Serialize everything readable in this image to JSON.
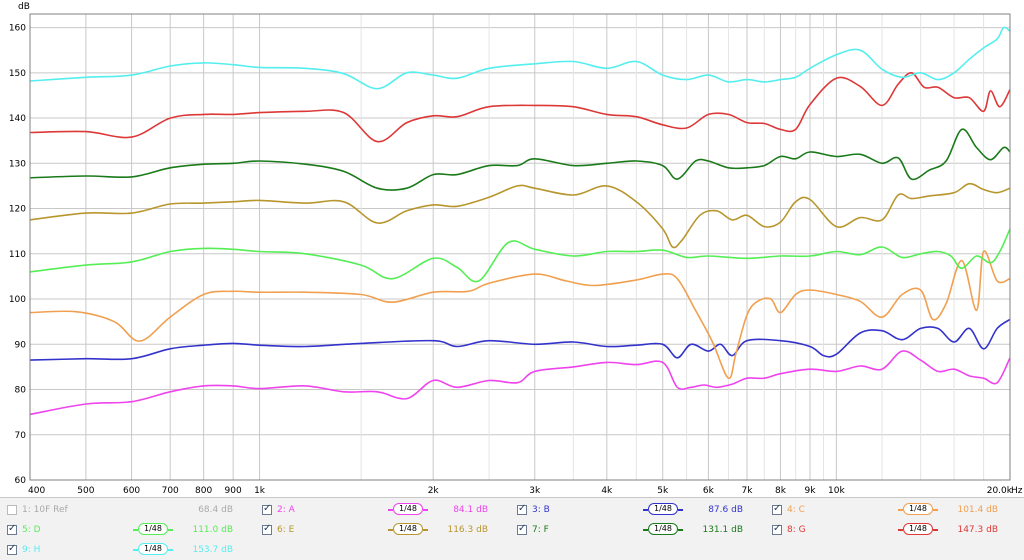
{
  "chart_data": {
    "type": "line",
    "xlabel": "Hz",
    "ylabel": "dB",
    "xscale": "log",
    "xlim": [
      400,
      20000
    ],
    "ylim": [
      60,
      163
    ],
    "grid": true,
    "y_ticks": [
      60,
      70,
      80,
      90,
      100,
      110,
      120,
      130,
      140,
      150,
      160
    ],
    "x_ticks": [
      {
        "value": 400,
        "label": "400"
      },
      {
        "value": 500,
        "label": "500"
      },
      {
        "value": 600,
        "label": "600"
      },
      {
        "value": 700,
        "label": "700"
      },
      {
        "value": 800,
        "label": "800"
      },
      {
        "value": 900,
        "label": "900"
      },
      {
        "value": 1000,
        "label": "1k"
      },
      {
        "value": 2000,
        "label": "2k"
      },
      {
        "value": 3000,
        "label": "3k"
      },
      {
        "value": 4000,
        "label": "4k"
      },
      {
        "value": 5000,
        "label": "5k"
      },
      {
        "value": 6000,
        "label": "6k"
      },
      {
        "value": 7000,
        "label": "7k"
      },
      {
        "value": 8000,
        "label": "8k"
      },
      {
        "value": 9000,
        "label": "9k"
      },
      {
        "value": 10000,
        "label": "10k"
      },
      {
        "value": 20000,
        "label": "20.0k"
      }
    ],
    "x_minor": [
      1500,
      2500,
      3500,
      4500,
      5500,
      6500,
      7500,
      8500,
      9500,
      12000,
      14000,
      16000,
      18000
    ],
    "series": [
      {
        "name": "A",
        "color": "#ee44ee",
        "x": [
          400,
          500,
          600,
          700,
          800,
          900,
          1000,
          1200,
          1400,
          1600,
          1800,
          2000,
          2200,
          2500,
          2800,
          3000,
          3500,
          4000,
          4500,
          5000,
          5300,
          5600,
          5900,
          6200,
          6600,
          7000,
          7500,
          8000,
          9000,
          10000,
          11000,
          12000,
          13000,
          14000,
          15000,
          16000,
          17000,
          18000,
          19000,
          20000
        ],
        "y": [
          74.5,
          76.8,
          77.3,
          79.5,
          80.8,
          80.8,
          80.2,
          80.8,
          79.5,
          79.5,
          78,
          82,
          80.5,
          82,
          81.5,
          84,
          85,
          86,
          85.5,
          86,
          80.5,
          80.5,
          81,
          80.5,
          81.2,
          82.5,
          82.5,
          83.5,
          84.5,
          84,
          85.2,
          84.5,
          88.5,
          86.5,
          84,
          84.5,
          83,
          82.5,
          81.5,
          87
        ]
      },
      {
        "name": "B",
        "color": "#3333cc",
        "x": [
          400,
          500,
          600,
          700,
          800,
          900,
          1000,
          1200,
          1500,
          2000,
          2200,
          2500,
          3000,
          3500,
          4000,
          4500,
          5000,
          5300,
          5600,
          6000,
          6300,
          6600,
          7000,
          8000,
          9000,
          9500,
          10000,
          11000,
          12000,
          13000,
          14000,
          15000,
          16000,
          17000,
          18000,
          19000,
          20000
        ],
        "y": [
          86.5,
          86.8,
          86.8,
          89,
          89.8,
          90.2,
          89.8,
          89.5,
          90.2,
          90.8,
          89.5,
          90.8,
          90,
          90.5,
          89.5,
          89.8,
          90,
          87,
          90,
          88.5,
          90,
          87.5,
          90.8,
          90.8,
          89.5,
          87.5,
          87.8,
          92.5,
          93,
          91,
          93.5,
          93.5,
          90.5,
          93.5,
          89,
          93.5,
          95.5
        ]
      },
      {
        "name": "C",
        "color": "#f0a050",
        "x": [
          400,
          480,
          560,
          620,
          700,
          800,
          900,
          1000,
          1200,
          1500,
          1700,
          2000,
          2300,
          2500,
          3000,
          3400,
          3800,
          4500,
          5000,
          5300,
          5700,
          6100,
          6500,
          6700,
          7000,
          7300,
          7700,
          8000,
          8500,
          9000,
          10000,
          11000,
          12000,
          13000,
          14000,
          14700,
          15500,
          16500,
          17500,
          18000,
          19000,
          20000
        ],
        "y": [
          97,
          97.2,
          95,
          90.7,
          96,
          101,
          101.7,
          101.5,
          101.5,
          101,
          99.3,
          101.5,
          101.7,
          103.5,
          105.5,
          104,
          103,
          104.2,
          105.5,
          104.5,
          97.5,
          90.5,
          82.5,
          88,
          96.5,
          99.5,
          100,
          97,
          101,
          102,
          101,
          99.5,
          96,
          101,
          102,
          95.5,
          99,
          108.5,
          97.5,
          110.5,
          104,
          104.5
        ]
      },
      {
        "name": "D",
        "color": "#55ee55",
        "x": [
          400,
          500,
          600,
          700,
          800,
          900,
          1000,
          1200,
          1500,
          1700,
          2000,
          2200,
          2400,
          2700,
          3000,
          3500,
          4000,
          4500,
          5000,
          5500,
          6000,
          7000,
          8000,
          9000,
          10000,
          11000,
          12000,
          13000,
          14000,
          15000,
          15800,
          16500,
          17500,
          18500,
          19200,
          20000
        ],
        "y": [
          106,
          107.5,
          108.2,
          110.5,
          111.2,
          111,
          110.5,
          110,
          107.5,
          104.5,
          109,
          107,
          104,
          112.5,
          111,
          109.5,
          110.5,
          110.5,
          110.8,
          109.2,
          109.5,
          109,
          109.5,
          109.5,
          110.5,
          109.8,
          111.5,
          109.2,
          110,
          110.5,
          109.5,
          106.8,
          109.5,
          108,
          110.5,
          115.5
        ]
      },
      {
        "name": "E",
        "color": "#b8962e",
        "x": [
          400,
          500,
          600,
          700,
          800,
          900,
          1000,
          1200,
          1400,
          1600,
          1800,
          2000,
          2200,
          2500,
          2800,
          3000,
          3500,
          4000,
          4500,
          5000,
          5200,
          5400,
          5800,
          6200,
          6600,
          7000,
          7500,
          8000,
          8500,
          9000,
          10000,
          11000,
          12000,
          12800,
          13500,
          14500,
          16000,
          17000,
          18000,
          19000,
          20000
        ],
        "y": [
          117.5,
          119,
          119,
          121,
          121.2,
          121.5,
          121.8,
          121.2,
          121.5,
          116.8,
          119.5,
          120.8,
          120.5,
          122.5,
          125,
          124.5,
          123,
          125,
          121.5,
          115.5,
          111.5,
          113,
          118.5,
          119.5,
          117.5,
          118.5,
          116,
          117,
          121.5,
          122,
          116,
          118,
          117.5,
          123,
          122.2,
          122.8,
          123.5,
          125.5,
          124.2,
          123.5,
          124.5
        ]
      },
      {
        "name": "F",
        "color": "#1a7a1a",
        "x": [
          400,
          500,
          600,
          700,
          800,
          900,
          1000,
          1200,
          1400,
          1600,
          1800,
          2000,
          2200,
          2500,
          2800,
          3000,
          3500,
          4000,
          4500,
          5000,
          5300,
          5700,
          6000,
          6500,
          7000,
          7500,
          8000,
          8500,
          9000,
          10000,
          11000,
          12000,
          12800,
          13500,
          14500,
          15500,
          16500,
          17500,
          18500,
          19500,
          20000
        ],
        "y": [
          126.8,
          127.2,
          127,
          129,
          129.8,
          130,
          130.5,
          129.8,
          128.2,
          124.5,
          124.5,
          127.5,
          127.5,
          129.5,
          129.5,
          131,
          129.5,
          130,
          130.5,
          129.5,
          126.5,
          130.5,
          130.5,
          129,
          129,
          129.5,
          131.5,
          131,
          132.5,
          131.5,
          132,
          130,
          131.2,
          126.5,
          128.5,
          130.5,
          137.5,
          133.5,
          130.8,
          133.5,
          132.5
        ]
      },
      {
        "name": "G",
        "color": "#dd3838",
        "x": [
          400,
          500,
          600,
          700,
          800,
          900,
          1000,
          1200,
          1400,
          1600,
          1800,
          2000,
          2200,
          2500,
          3000,
          3500,
          4000,
          4500,
          5000,
          5500,
          6000,
          6500,
          7000,
          7500,
          8000,
          8500,
          9000,
          10000,
          11000,
          12000,
          12800,
          13500,
          14200,
          15000,
          16000,
          17000,
          18000,
          18500,
          19200,
          20000
        ],
        "y": [
          136.8,
          137,
          135.8,
          140,
          140.8,
          140.8,
          141.2,
          141.5,
          141.2,
          134.8,
          139,
          140.5,
          140.3,
          142.5,
          142.8,
          142.5,
          140.8,
          140.3,
          138.5,
          137.8,
          140.8,
          140.8,
          139,
          138.8,
          137.5,
          137.5,
          143,
          148.8,
          147,
          142.8,
          147.5,
          150,
          146.8,
          146.8,
          144.5,
          144.5,
          141.5,
          146,
          142.5,
          146.3
        ]
      },
      {
        "name": "H",
        "color": "#55eeee",
        "x": [
          400,
          500,
          600,
          700,
          800,
          900,
          1000,
          1200,
          1400,
          1600,
          1800,
          2000,
          2200,
          2500,
          3000,
          3500,
          4000,
          4500,
          5000,
          5500,
          6000,
          6500,
          7000,
          7500,
          8000,
          8500,
          9000,
          10000,
          11000,
          12000,
          13000,
          14000,
          15000,
          16000,
          17000,
          18000,
          19000,
          19500,
          20000
        ],
        "y": [
          148.2,
          149,
          149.5,
          151.5,
          152.2,
          151.8,
          151.2,
          151,
          149.8,
          146.5,
          150,
          149.5,
          148.8,
          151,
          152,
          152.5,
          151,
          152.5,
          149.5,
          148.5,
          149.5,
          148,
          148.5,
          148,
          148.5,
          149,
          151,
          154,
          155,
          150.8,
          149,
          150,
          148.5,
          150,
          153,
          155.5,
          157.5,
          160,
          159.2
        ]
      }
    ]
  },
  "axis": {
    "y_unit": "dB",
    "x_unit": "Hz"
  },
  "legend": {
    "rows": [
      [
        {
          "checked": false,
          "disabled": true,
          "name": "1: 10F Ref",
          "smoothing": "",
          "value": "68.4 dB",
          "color": "#aaaaaa"
        },
        {
          "checked": true,
          "disabled": false,
          "name": "2: A",
          "smoothing": "1/48",
          "value": "84.1 dB",
          "color": "#ee44ee"
        },
        {
          "checked": true,
          "disabled": false,
          "name": "3: B",
          "smoothing": "1/48",
          "value": "87.6 dB",
          "color": "#3333cc"
        },
        {
          "checked": true,
          "disabled": false,
          "name": "4: C",
          "smoothing": "1/48",
          "value": "101.4 dB",
          "color": "#f0a050"
        }
      ],
      [
        {
          "checked": true,
          "disabled": false,
          "name": "5: D",
          "smoothing": "1/48",
          "value": "111.0 dB",
          "color": "#55ee55"
        },
        {
          "checked": true,
          "disabled": false,
          "name": "6: E",
          "smoothing": "1/48",
          "value": "116.3 dB",
          "color": "#b8962e"
        },
        {
          "checked": true,
          "disabled": false,
          "name": "7: F",
          "smoothing": "1/48",
          "value": "131.1 dB",
          "color": "#1a7a1a"
        },
        {
          "checked": true,
          "disabled": false,
          "name": "8: G",
          "smoothing": "1/48",
          "value": "147.3 dB",
          "color": "#dd3838"
        }
      ],
      [
        {
          "checked": true,
          "disabled": false,
          "name": "9: H",
          "smoothing": "1/48",
          "value": "153.7 dB",
          "color": "#55eeee"
        }
      ]
    ]
  }
}
